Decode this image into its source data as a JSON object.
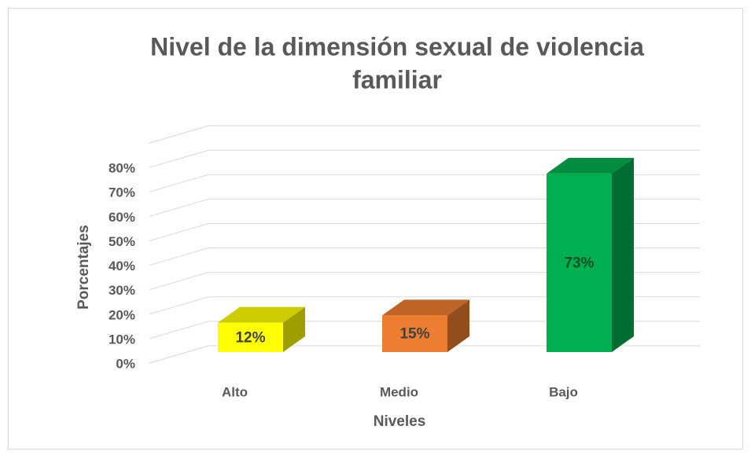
{
  "chart_data": {
    "type": "bar3d",
    "title": [
      "Nivel de la dimensión sexual de violencia",
      "familiar"
    ],
    "x_label": "Niveles",
    "y_label": "Porcentajes",
    "categories": [
      "Alto",
      "Medio",
      "Bajo"
    ],
    "values": [
      12,
      15,
      73
    ],
    "value_labels": [
      "12%",
      "15%",
      "73%"
    ],
    "colors": [
      "#ffff00",
      "#ed7d31",
      "#00b050"
    ],
    "ylim": [
      0,
      90
    ],
    "yticks": [
      {
        "value": 0,
        "label": "0%"
      },
      {
        "value": 10,
        "label": "10%"
      },
      {
        "value": 20,
        "label": "20%"
      },
      {
        "value": 30,
        "label": "30%"
      },
      {
        "value": 40,
        "label": "40%"
      },
      {
        "value": 50,
        "label": "50%"
      },
      {
        "value": 60,
        "label": "60%"
      },
      {
        "value": 70,
        "label": "70%"
      },
      {
        "value": 80,
        "label": "80%"
      }
    ],
    "grid": true
  }
}
